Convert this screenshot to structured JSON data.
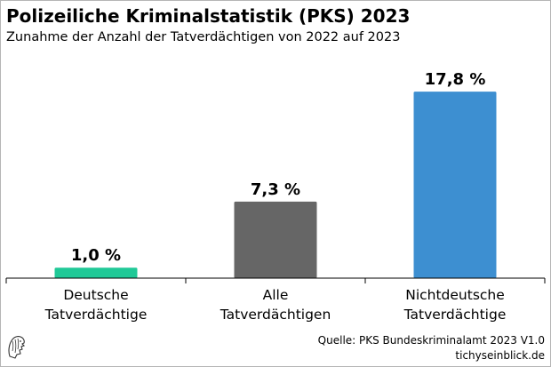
{
  "header": {
    "title": "Polizeiliche Kriminalstatistik (PKS) 2023",
    "subtitle": "Zunahme der Anzahl der Tatverdächtigen von 2022 auf 2023"
  },
  "footer": {
    "source": "Quelle: PKS Bundeskriminalamt 2023 V1.0",
    "site": "tichyseinblick.de"
  },
  "logo": {
    "icon": "lion-head-logo-icon"
  },
  "chart_data": {
    "type": "bar",
    "categories": [
      [
        "Deutsche",
        "Tatverdächtige"
      ],
      [
        "Alle",
        "Tatverdächtigen"
      ],
      [
        "Nichtdeutsche",
        "Tatverdächtige"
      ]
    ],
    "values": [
      1.0,
      7.3,
      17.8
    ],
    "value_labels": [
      "1,0 %",
      "7,3 %",
      "17,8 %"
    ],
    "colors": [
      "#20c997",
      "#666666",
      "#3d8fd1"
    ],
    "unit": "%",
    "ylim": [
      0,
      19.5
    ],
    "grid": false,
    "legend": "none"
  }
}
